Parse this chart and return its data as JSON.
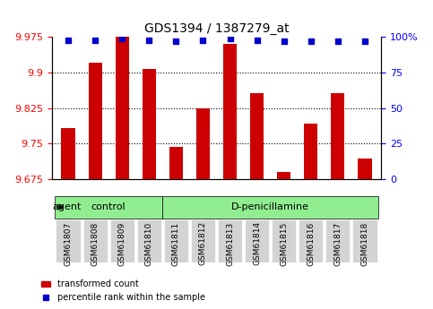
{
  "title": "GDS1394 / 1387279_at",
  "samples": [
    "GSM61807",
    "GSM61808",
    "GSM61809",
    "GSM61810",
    "GSM61811",
    "GSM61812",
    "GSM61813",
    "GSM61814",
    "GSM61815",
    "GSM61816",
    "GSM61817",
    "GSM61818"
  ],
  "bar_values": [
    9.782,
    9.921,
    9.975,
    9.907,
    9.743,
    9.825,
    9.96,
    9.856,
    9.69,
    9.793,
    9.856,
    9.718
  ],
  "percentile_values": [
    98,
    98,
    99,
    98,
    97,
    98,
    99,
    98,
    97,
    97,
    97,
    97
  ],
  "bar_color": "#cc0000",
  "dot_color": "#0000cc",
  "ylim_left": [
    9.675,
    9.975
  ],
  "ylim_right": [
    0,
    100
  ],
  "yticks_left": [
    9.675,
    9.75,
    9.825,
    9.9,
    9.975
  ],
  "yticks_right": [
    0,
    25,
    50,
    75,
    100
  ],
  "ytick_labels_right": [
    "0",
    "25",
    "50",
    "75",
    "100%"
  ],
  "control_samples": [
    "GSM61807",
    "GSM61808",
    "GSM61809",
    "GSM61810"
  ],
  "treatment_samples": [
    "GSM61811",
    "GSM61812",
    "GSM61813",
    "GSM61814",
    "GSM61815",
    "GSM61816",
    "GSM61817",
    "GSM61818"
  ],
  "control_label": "control",
  "treatment_label": "D-penicillamine",
  "agent_label": "agent",
  "legend_bar_label": "transformed count",
  "legend_dot_label": "percentile rank within the sample",
  "bar_bottom": 9.675,
  "grid_color": "#000000",
  "background_color": "#ffffff",
  "plot_bg_color": "#ffffff",
  "tick_area_bg": "#d3d3d3",
  "agent_area_bg": "#90ee90"
}
